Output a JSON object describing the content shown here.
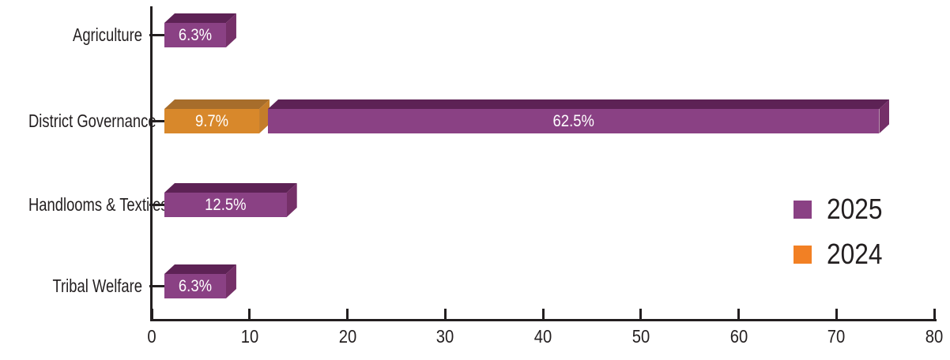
{
  "chart_data": {
    "type": "bar",
    "orientation": "horizontal",
    "style": "3d-stacked",
    "title": "",
    "xlabel": "",
    "ylabel": "",
    "xlim": [
      0,
      80
    ],
    "x_ticks": [
      0,
      10,
      20,
      30,
      40,
      50,
      60,
      70,
      80
    ],
    "grid": false,
    "background": "#ffffff",
    "axis_color": "#231f20",
    "text_color": "#231f20",
    "data_label_color": "#ffffff",
    "categories": [
      "Agriculture",
      "District Governance",
      "Handlooms & Textiles",
      "Tribal Welfare"
    ],
    "draw_order": [
      "2024",
      "2025"
    ],
    "series": [
      {
        "name": "2025",
        "legend_color": "#8a4184",
        "front_color": "#8a4184",
        "top_color": "#5d2255",
        "side_color": "#753068",
        "values": [
          6.3,
          62.5,
          12.5,
          6.3
        ],
        "labels": [
          "6.3%",
          "62.5%",
          "12.5%",
          "6.3%"
        ]
      },
      {
        "name": "2024",
        "legend_color": "#f28024",
        "front_color": "#d8882b",
        "top_color": "#a76d2b",
        "side_color": "#c47d2a",
        "values": [
          null,
          9.7,
          null,
          null
        ],
        "labels": [
          null,
          "9.7%",
          null,
          null
        ]
      }
    ],
    "legend": {
      "position": "right",
      "entries": [
        "2025",
        "2024"
      ]
    }
  }
}
